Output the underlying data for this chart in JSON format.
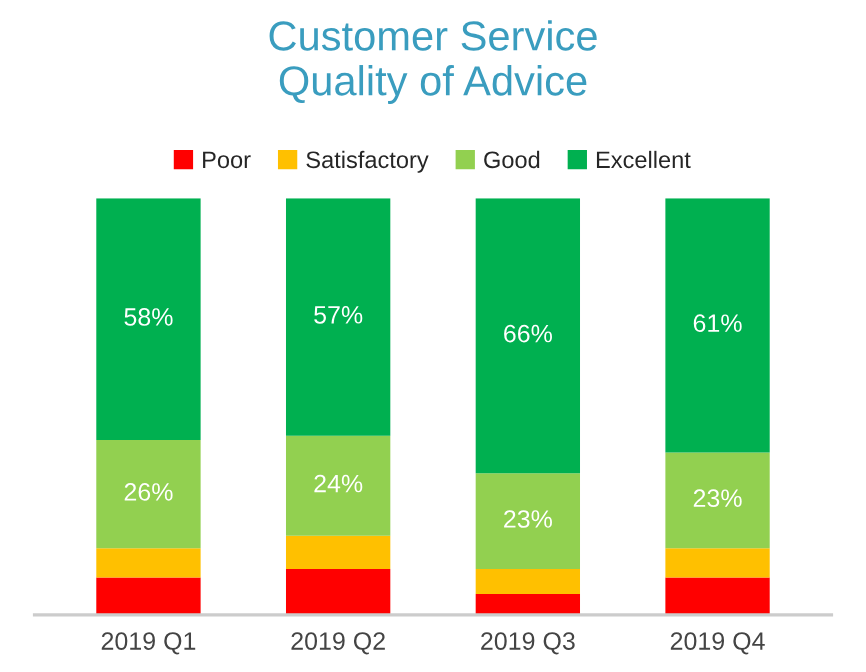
{
  "chart_data": {
    "type": "bar",
    "title": "Customer Service\nQuality of Advice",
    "stacked": true,
    "legend": "top",
    "ylim": [
      0,
      100
    ],
    "tick_labels": "x",
    "categories": [
      "2019 Q1",
      "2019 Q2",
      "2019 Q3",
      "2019 Q4"
    ],
    "series": [
      {
        "name": "Poor",
        "color": "#ff0000",
        "values": [
          9,
          11,
          5,
          9
        ],
        "value_labels": [
          null,
          null,
          null,
          null
        ]
      },
      {
        "name": "Satisfactory",
        "color": "#ffc000",
        "values": [
          7,
          8,
          6,
          7
        ],
        "value_labels": [
          null,
          null,
          null,
          null
        ]
      },
      {
        "name": "Good",
        "color": "#92d050",
        "values": [
          26,
          24,
          23,
          23
        ],
        "value_labels": [
          "26%",
          "24%",
          "23%",
          "23%"
        ]
      },
      {
        "name": "Excellent",
        "color": "#00b050",
        "values": [
          58,
          57,
          66,
          61
        ],
        "value_labels": [
          "58%",
          "57%",
          "66%",
          "61%"
        ]
      }
    ]
  }
}
